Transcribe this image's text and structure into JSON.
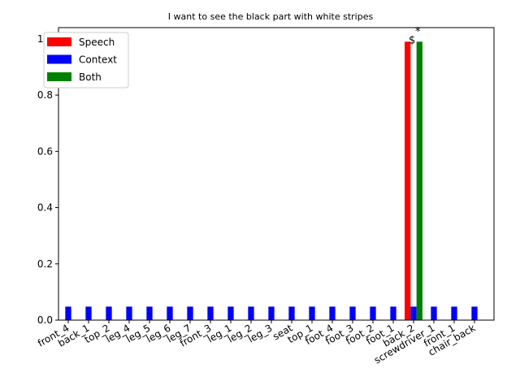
{
  "chart_data": {
    "type": "bar",
    "title": "I want to see the black part with white stripes",
    "xlabel": "",
    "ylabel": "",
    "ylim": [
      0,
      1.04
    ],
    "yticks": [
      0.0,
      0.2,
      0.4,
      0.6,
      0.8,
      1.0
    ],
    "ytick_labels": [
      "0.0",
      "0.2",
      "0.4",
      "0.6",
      "0.8",
      "1.0"
    ],
    "grid": false,
    "legend_position": "top-left",
    "categories": [
      "front_4",
      "back_1",
      "top_2",
      "leg_4",
      "leg_5",
      "leg_6",
      "leg_7",
      "front_3",
      "leg_1",
      "leg_2",
      "leg_3",
      "seat",
      "top_1",
      "foot_4",
      "foot_3",
      "foot_2",
      "foot_1",
      "back_2",
      "screwdriver_1",
      "front_1",
      "chair_back"
    ],
    "series": [
      {
        "name": "Speech",
        "color": "#ff0000",
        "values": [
          0,
          0,
          0,
          0,
          0,
          0,
          0,
          0,
          0,
          0,
          0,
          0,
          0,
          0,
          0,
          0,
          0,
          0.99,
          0,
          0,
          0
        ]
      },
      {
        "name": "Context",
        "color": "#0000ff",
        "values": [
          0.048,
          0.048,
          0.048,
          0.048,
          0.048,
          0.048,
          0.048,
          0.048,
          0.048,
          0.048,
          0.048,
          0.048,
          0.048,
          0.048,
          0.048,
          0.048,
          0.048,
          0.048,
          0.048,
          0.048,
          0.048
        ]
      },
      {
        "name": "Both",
        "color": "#008000",
        "values": [
          0,
          0,
          0,
          0,
          0,
          0,
          0,
          0,
          0,
          0,
          0,
          0,
          0,
          0,
          0,
          0,
          0,
          0.99,
          0,
          0,
          0
        ]
      }
    ],
    "annotations": [
      {
        "text": "$",
        "category": "back_2",
        "y": 0.99
      },
      {
        "text": "*",
        "category": "back_2",
        "y": 1.02
      }
    ]
  }
}
